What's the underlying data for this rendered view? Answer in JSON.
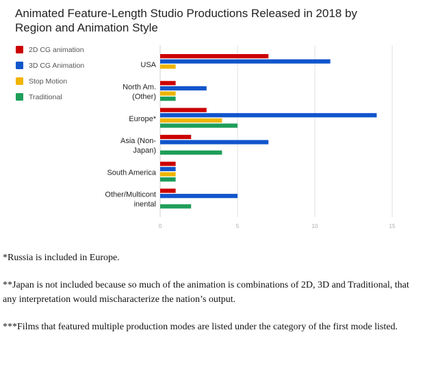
{
  "chart_data": {
    "type": "bar",
    "orientation": "horizontal",
    "title": [
      "Animated Feature-Length Studio Productions Released in 2018 by",
      "Region and Animation Style"
    ],
    "categories": [
      [
        "USA"
      ],
      [
        "North Am.",
        "(Other)"
      ],
      [
        "Europe*"
      ],
      [
        "Asia (Non-",
        "Japan)"
      ],
      [
        "South America"
      ],
      [
        "Other/Multicont",
        "inental"
      ]
    ],
    "series": [
      {
        "name": "2D CG animation",
        "color": "#cc0000",
        "values": [
          7,
          1,
          3,
          2,
          1,
          1
        ]
      },
      {
        "name": "3D CG Animation",
        "color": "#1155cc",
        "values": [
          11,
          3,
          14,
          7,
          1,
          5
        ]
      },
      {
        "name": "Stop Motion",
        "color": "#f1b400",
        "values": [
          1,
          1,
          4,
          0,
          1,
          0
        ]
      },
      {
        "name": "Traditional",
        "color": "#1e9e5a",
        "values": [
          0,
          1,
          5,
          4,
          1,
          2
        ]
      }
    ],
    "xlim": [
      0,
      15
    ],
    "xticks": [
      "0",
      "5",
      "10",
      "15"
    ],
    "grid": true,
    "legend_position": "top-left"
  },
  "notes": [
    "*Russia is included in Europe.",
    "**Japan is not included because so much of the animation is combinations of 2D, 3D and Traditional, that any interpretation would mischaracterize the nation’s output.",
    "***Films that featured multiple production modes are listed under the category of the first mode listed."
  ]
}
